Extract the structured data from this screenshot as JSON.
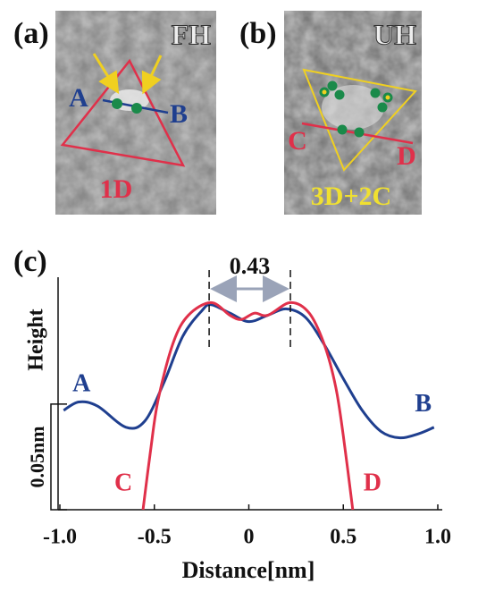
{
  "panels": [
    {
      "label": "(a)",
      "tag": "FH",
      "caption": "1D",
      "ends": [
        "A",
        "B"
      ]
    },
    {
      "label": "(b)",
      "tag": "UH",
      "caption": "3D+2C",
      "ends": [
        "C",
        "D"
      ]
    }
  ],
  "chart_data": {
    "type": "line",
    "panel_label": "(c)",
    "xlabel": "Distance[nm]",
    "ylabel": "Height",
    "xlim": [
      -1,
      1
    ],
    "ylim": [
      0,
      0.11
    ],
    "xticks": [
      {
        "value": -1,
        "label": "-1.0"
      },
      -0.5,
      0,
      0.5,
      {
        "value": 1,
        "label": "1.0"
      }
    ],
    "scale_bar": {
      "value": 0.05,
      "label": "0.05nm"
    },
    "annotation": {
      "text": "0.43",
      "x": [
        -0.21,
        0.22
      ]
    },
    "series": [
      {
        "color": "#1f3f8f",
        "start_label": "A",
        "end_label": "B",
        "x": [
          -0.98,
          -0.9,
          -0.8,
          -0.65,
          -0.55,
          -0.45,
          -0.35,
          -0.25,
          -0.2,
          -0.1,
          0,
          0.1,
          0.2,
          0.3,
          0.4,
          0.5,
          0.6,
          0.7,
          0.8,
          0.9,
          0.98
        ],
        "values": [
          0.047,
          0.051,
          0.049,
          0.039,
          0.042,
          0.06,
          0.082,
          0.094,
          0.097,
          0.093,
          0.089,
          0.092,
          0.095,
          0.091,
          0.078,
          0.062,
          0.047,
          0.037,
          0.034,
          0.036,
          0.039
        ]
      },
      {
        "color": "#e0304a",
        "start_label": "C",
        "end_label": "D",
        "x": [
          -0.56,
          -0.52,
          -0.48,
          -0.4,
          -0.32,
          -0.2,
          -0.1,
          -0.04,
          0.03,
          0.1,
          0.22,
          0.32,
          0.4,
          0.46,
          0.5,
          0.55
        ],
        "values": [
          0,
          0.028,
          0.052,
          0.079,
          0.092,
          0.098,
          0.092,
          0.09,
          0.093,
          0.092,
          0.098,
          0.093,
          0.078,
          0.058,
          0.035,
          0
        ]
      }
    ]
  }
}
